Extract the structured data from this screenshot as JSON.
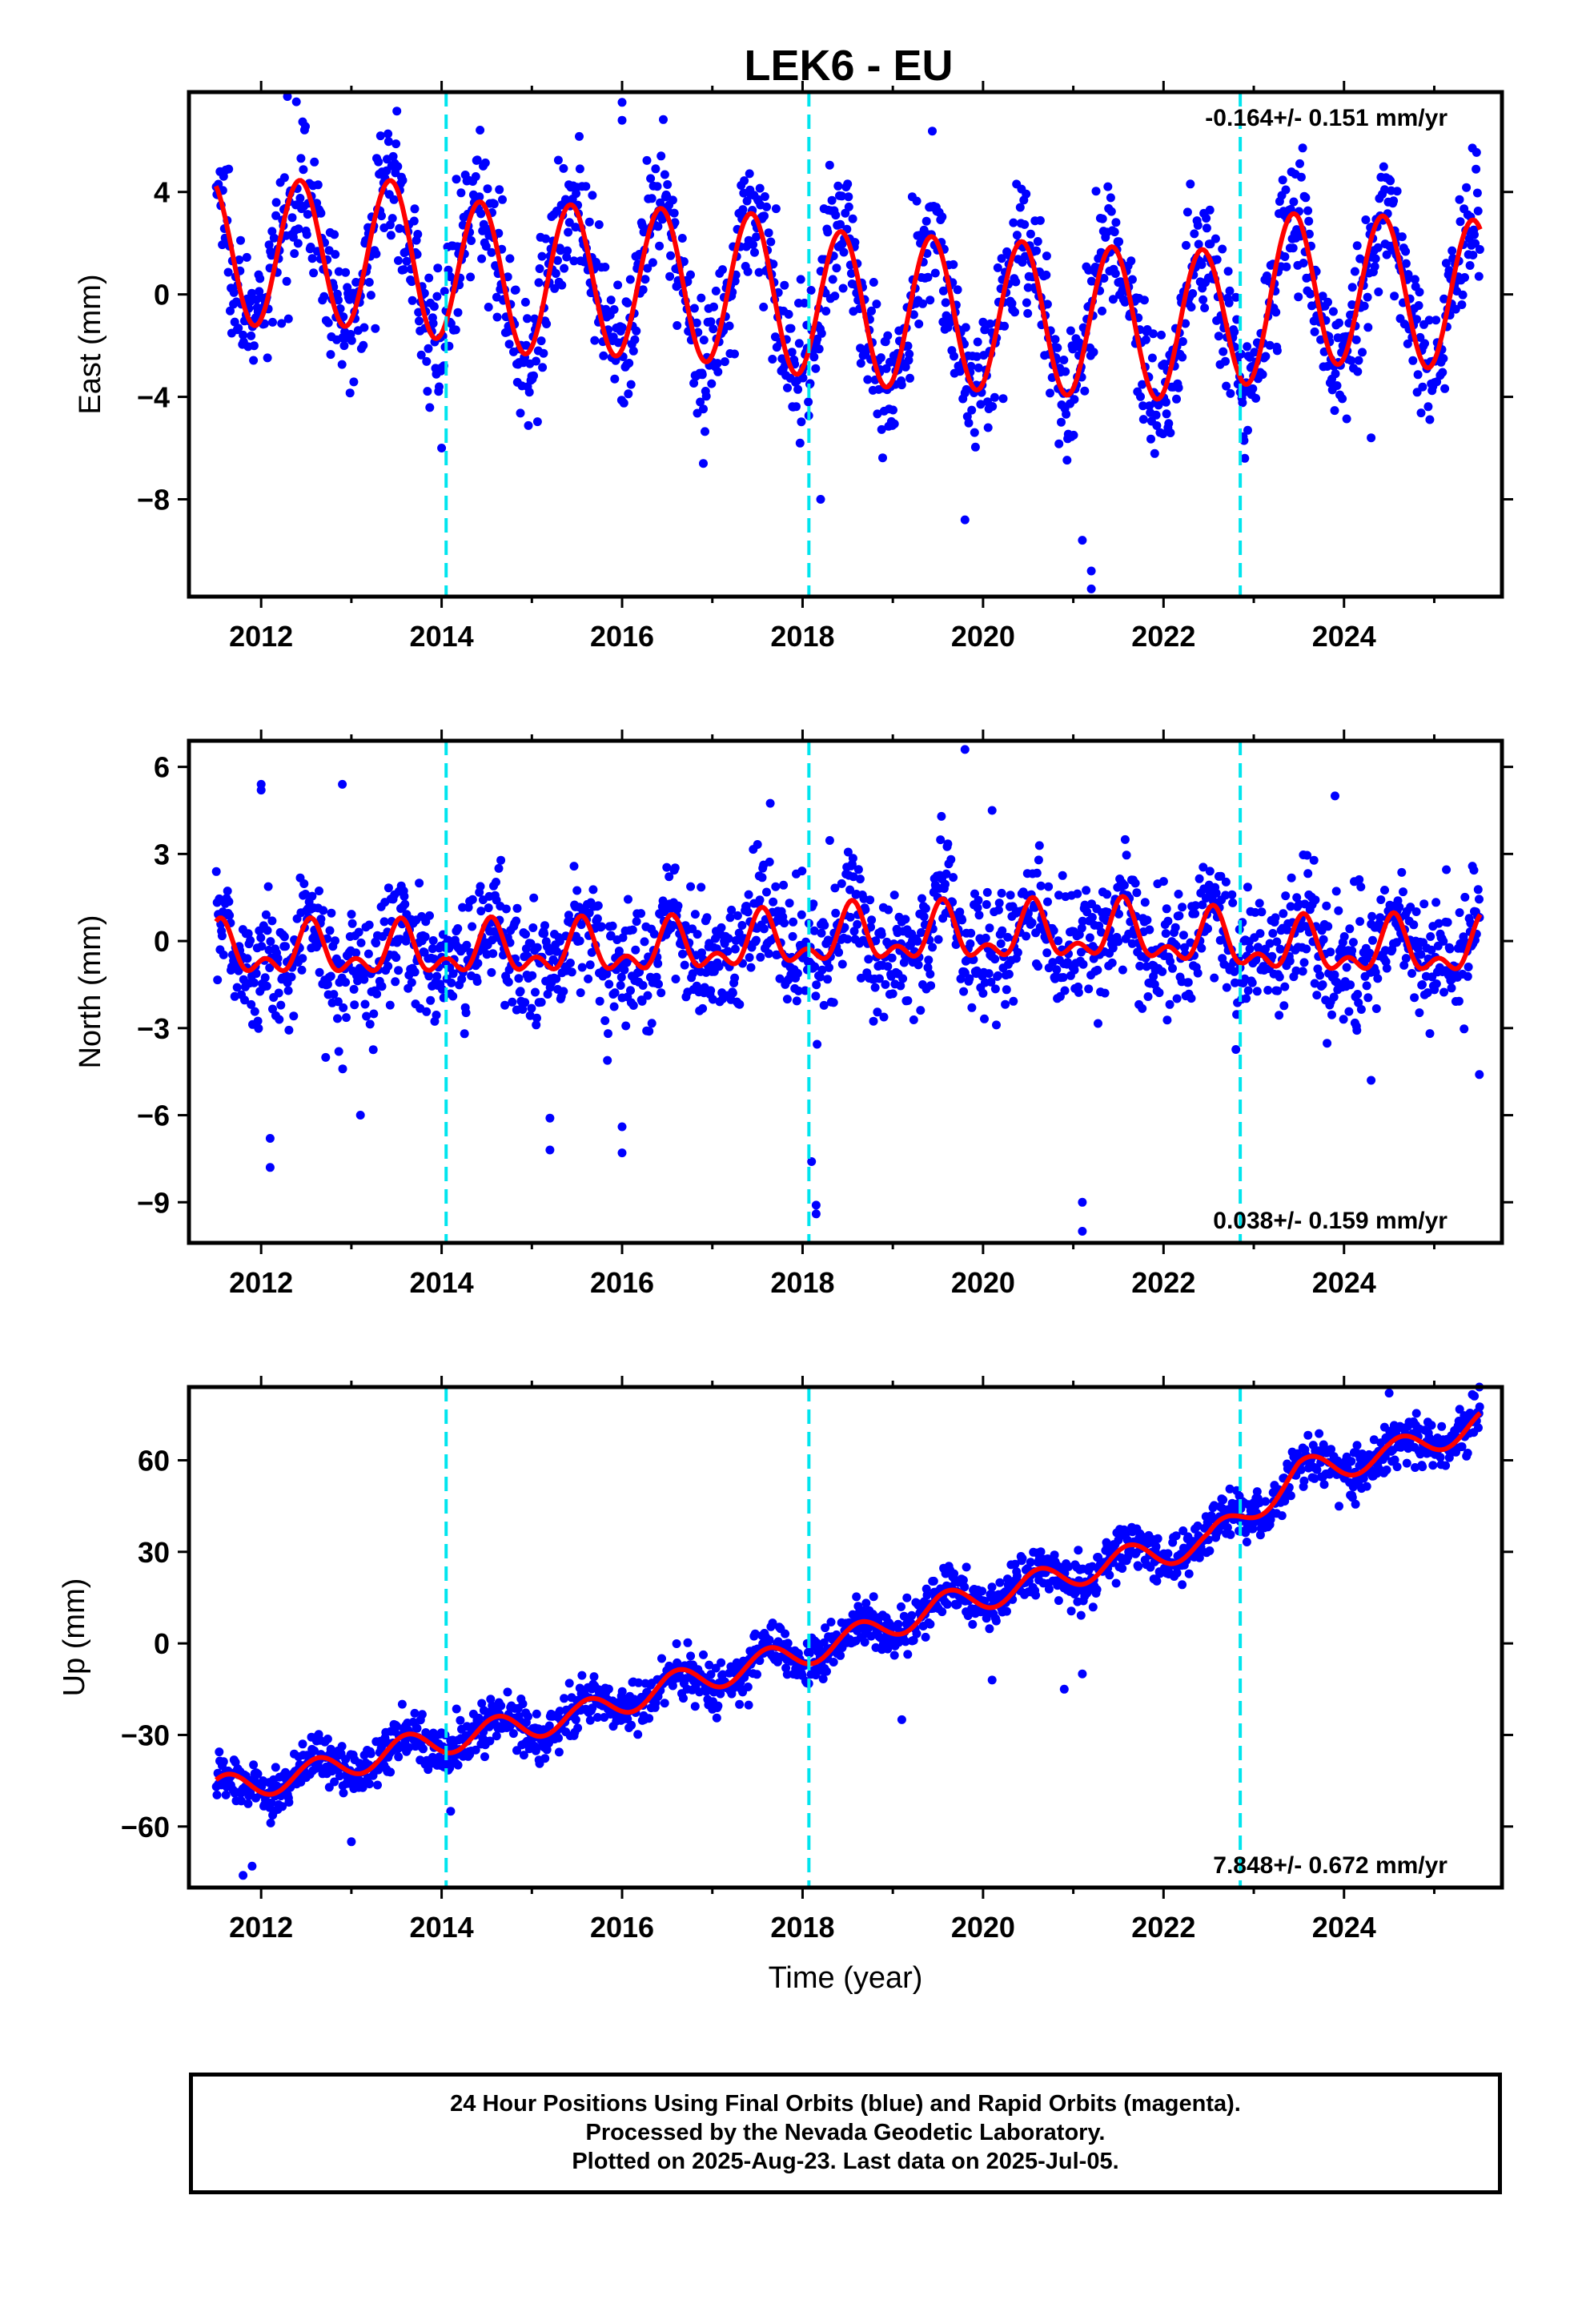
{
  "title": "LEK6 - EU",
  "colors": {
    "data": "#0000ff",
    "model": "#ff0000",
    "offset": "#00e5ee",
    "frame": "#000000"
  },
  "chart_data": [
    {
      "type": "scatter",
      "component": "East",
      "ylabel": "East (mm)",
      "xlabel": "",
      "xlim": [
        2011.2,
        2025.75
      ],
      "ylim": [
        -11.8,
        7.9
      ],
      "xticks": [
        2012,
        2014,
        2016,
        2018,
        2020,
        2022,
        2024
      ],
      "yticks": [
        4,
        0,
        -4,
        -8
      ],
      "ytick_labels": [
        "4",
        "0",
        "−4",
        "−8"
      ],
      "rate_text": "-0.164+/- 0.151 mm/yr",
      "rate_position": "top-right",
      "equipment_changes": [
        2014.05,
        2018.07,
        2022.85
      ],
      "start": 2011.5,
      "end": 2025.51,
      "seasonal": [
        {
          "x": 2011.5,
          "amp": 2.85,
          "mean": 1.65
        },
        {
          "x": 2012.5,
          "amp": 2.85,
          "mean": 1.6
        },
        {
          "x": 2013.5,
          "amp": 2.85,
          "mean": 1.6
        },
        {
          "x": 2014.5,
          "amp": 2.95,
          "mean": 0.6
        },
        {
          "x": 2015.5,
          "amp": 2.9,
          "mean": 0.6
        },
        {
          "x": 2016.5,
          "amp": 2.95,
          "mean": 0.4
        },
        {
          "x": 2017.5,
          "amp": 2.95,
          "mean": 0.2
        },
        {
          "x": 2018.5,
          "amp": 3.0,
          "mean": -0.6
        },
        {
          "x": 2019.5,
          "amp": 2.95,
          "mean": -0.7
        },
        {
          "x": 2020.5,
          "amp": 2.95,
          "mean": -0.9
        },
        {
          "x": 2021.5,
          "amp": 2.95,
          "mean": -1.1
        },
        {
          "x": 2022.5,
          "amp": 2.95,
          "mean": -1.2
        },
        {
          "x": 2023.5,
          "amp": 2.95,
          "mean": 0.3
        },
        {
          "x": 2024.5,
          "amp": 2.95,
          "mean": 0.1
        },
        {
          "x": 2025.5,
          "amp": 2.9,
          "mean": 0.0
        }
      ],
      "seasonal_peak_phase": 0.43,
      "semiannual_amp": 0.0,
      "scatter_sigma": 1.3,
      "outliers": [
        [
          2014.0,
          -6.0
        ],
        [
          2016.0,
          7.5
        ],
        [
          2016.0,
          6.8
        ],
        [
          2016.9,
          -6.6
        ],
        [
          2018.2,
          -8.0
        ],
        [
          2019.8,
          -8.8
        ],
        [
          2021.1,
          -9.6
        ],
        [
          2021.2,
          -11.5
        ],
        [
          2021.2,
          -10.8
        ],
        [
          2022.9,
          -6.4
        ],
        [
          2024.3,
          -5.6
        ]
      ]
    },
    {
      "type": "scatter",
      "component": "North",
      "ylabel": "North (mm)",
      "xlabel": "",
      "xlim": [
        2011.2,
        2025.75
      ],
      "ylim": [
        -10.4,
        6.9
      ],
      "xticks": [
        2012,
        2014,
        2016,
        2018,
        2020,
        2022,
        2024
      ],
      "yticks": [
        6,
        3,
        0,
        -3,
        -6,
        -9
      ],
      "ytick_labels": [
        "6",
        "3",
        "0",
        "−3",
        "−6",
        "−9"
      ],
      "rate_text": "0.038+/- 0.159 mm/yr",
      "rate_position": "bottom-right",
      "equipment_changes": [
        2014.05,
        2018.07,
        2022.85
      ],
      "start": 2011.5,
      "end": 2025.51,
      "seasonal": [
        {
          "x": 2011.5,
          "amp": 0.7,
          "mean": -0.4
        },
        {
          "x": 2013.5,
          "amp": 0.7,
          "mean": -0.4
        },
        {
          "x": 2016.5,
          "amp": 0.7,
          "mean": -0.3
        },
        {
          "x": 2018.5,
          "amp": 0.8,
          "mean": 0.1
        },
        {
          "x": 2021.5,
          "amp": 0.8,
          "mean": 0.25
        },
        {
          "x": 2023.5,
          "amp": 0.75,
          "mean": -0.3
        },
        {
          "x": 2025.5,
          "amp": 0.8,
          "mean": -0.3
        }
      ],
      "seasonal_peak_phase": 0.55,
      "semiannual_amp": 0.5,
      "scatter_sigma": 1.05,
      "outliers": [
        [
          2012.0,
          5.4
        ],
        [
          2012.0,
          5.2
        ],
        [
          2012.9,
          5.4
        ],
        [
          2012.1,
          -6.8
        ],
        [
          2012.1,
          -7.8
        ],
        [
          2013.1,
          -6.0
        ],
        [
          2015.2,
          -6.1
        ],
        [
          2015.2,
          -7.2
        ],
        [
          2016.0,
          -6.4
        ],
        [
          2016.0,
          -7.3
        ],
        [
          2018.1,
          -7.6
        ],
        [
          2018.15,
          -9.1
        ],
        [
          2018.15,
          -9.4
        ],
        [
          2019.8,
          6.6
        ],
        [
          2020.1,
          4.5
        ],
        [
          2021.1,
          -9.0
        ],
        [
          2021.1,
          -10.0
        ],
        [
          2023.9,
          5.0
        ],
        [
          2024.3,
          -4.8
        ],
        [
          2025.5,
          -4.6
        ]
      ]
    },
    {
      "type": "scatter",
      "component": "Up",
      "ylabel": "Up (mm)",
      "xlabel": "Time (year)",
      "xlim": [
        2011.2,
        2025.75
      ],
      "ylim": [
        -80,
        84
      ],
      "xticks": [
        2012,
        2014,
        2016,
        2018,
        2020,
        2022,
        2024
      ],
      "yticks": [
        60,
        30,
        0,
        -30,
        -60
      ],
      "ytick_labels": [
        "60",
        "30",
        "0",
        "−30",
        "−60"
      ],
      "rate_text": "7.848+/- 0.672 mm/yr",
      "rate_position": "bottom-right",
      "equipment_changes": [
        2014.05,
        2018.07,
        2022.85
      ],
      "start": 2011.5,
      "end": 2025.51,
      "seasonal": [
        {
          "x": 2011.5,
          "amp": 4.5,
          "mean": -48
        },
        {
          "x": 2012.5,
          "amp": 4.5,
          "mean": -43
        },
        {
          "x": 2013.5,
          "amp": 4.5,
          "mean": -35
        },
        {
          "x": 2014.5,
          "amp": 4.5,
          "mean": -29
        },
        {
          "x": 2015.5,
          "amp": 4.5,
          "mean": -24
        },
        {
          "x": 2016.5,
          "amp": 4.5,
          "mean": -14
        },
        {
          "x": 2017.5,
          "amp": 4.5,
          "mean": -7
        },
        {
          "x": 2018.5,
          "amp": 4.5,
          "mean": 1
        },
        {
          "x": 2019.5,
          "amp": 4.5,
          "mean": 12
        },
        {
          "x": 2020.5,
          "amp": 4.5,
          "mean": 19
        },
        {
          "x": 2021.5,
          "amp": 4.5,
          "mean": 27
        },
        {
          "x": 2022.5,
          "amp": 4.5,
          "mean": 33
        },
        {
          "x": 2023.5,
          "amp": 4.5,
          "mean": 56
        },
        {
          "x": 2024.5,
          "amp": 4.5,
          "mean": 62
        },
        {
          "x": 2025.5,
          "amp": 4.5,
          "mean": 72
        }
      ],
      "seasonal_peak_phase": 0.62,
      "semiannual_amp": 0.0,
      "scatter_sigma": 4.0,
      "outliers": [
        [
          2011.8,
          -76
        ],
        [
          2011.9,
          -73
        ],
        [
          2013.0,
          -65
        ],
        [
          2014.1,
          -55
        ],
        [
          2017.3,
          -20
        ],
        [
          2019.1,
          -25
        ],
        [
          2020.1,
          -12
        ],
        [
          2020.9,
          -15
        ],
        [
          2021.1,
          -10
        ],
        [
          2024.5,
          82
        ],
        [
          2025.5,
          84
        ]
      ]
    }
  ],
  "caption": {
    "line1": "24 Hour Positions Using Final Orbits (blue) and Rapid Orbits (magenta).",
    "line2": "Processed by the Nevada Geodetic Laboratory.",
    "line3": "Plotted on 2025-Aug-23. Last data on 2025-Jul-05."
  }
}
